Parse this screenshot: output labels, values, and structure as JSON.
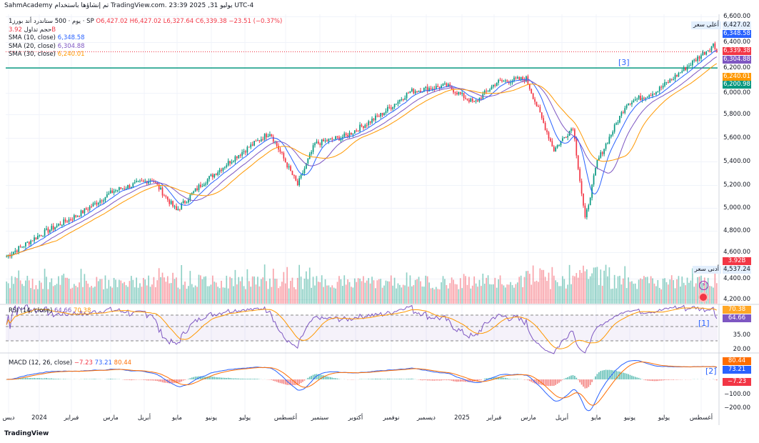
{
  "header": {
    "text": "SahmAcademy تم إنشاؤها باستخدام TradingView.com. 23:39 2025 ,31 يوليو UTC-4"
  },
  "legend": {
    "symbol": "1يوم · 500 ستاندرد أند بورز · SP",
    "open": "O6,427.02",
    "high": "H6,427.02",
    "low": "L6,327.64",
    "close": "C6,339.38",
    "change": "−23.51 (−0.37%)",
    "volume_label": "حجم تداول",
    "volume_value": "3.92B",
    "sma10_label": "SMA (10, close)",
    "sma10_value": "6,348.58",
    "sma20_label": "SMA (20, close)",
    "sma20_value": "6,304.88",
    "sma30_label": "SMA (30, close)",
    "sma30_value": "6,240.01"
  },
  "rsi": {
    "label": "RSI (14, close)",
    "value": "64.66",
    "ma": "70.38"
  },
  "macd": {
    "label": "MACD (12, 26, close)",
    "hist": "−7.23",
    "macd": "73.21",
    "signal": "80.44"
  },
  "price_tags": {
    "high_label": "أعلى سعر",
    "high": "6,427.02",
    "sma10": "6,348.58",
    "close": "6,339.38",
    "sma20": "6,304.88",
    "sma30": "6,240.01",
    "line": "6,200.98",
    "low_label": "أدنى سعر",
    "low": "4,537.24",
    "volume": "3.92B",
    "rsi_ma": "70.38",
    "rsi": "64.66",
    "macd_signal": "80.44",
    "macd": "73.21",
    "macd_hist": "−7.23"
  },
  "notes": [
    "[1]",
    "[2]",
    "[3]"
  ],
  "brand": "TradingView",
  "colors": {
    "up": "#089981",
    "down": "#f23645",
    "sma10": "#2962ff",
    "sma20": "#7e57c2",
    "sma30": "#ff9800",
    "line": "#089981"
  },
  "chart_data": {
    "type": "candlestick",
    "title": "S&P 500 · 1D",
    "price_axis_ticks": [
      "6,600.00",
      "6,400.00",
      "6,200.00",
      "6,000.00",
      "5,800.00",
      "5,600.00",
      "5,400.00",
      "5,200.00",
      "5,000.00",
      "4,800.00",
      "4,600.00",
      "4,400.00",
      "4,200.00"
    ],
    "rsi_ticks": [
      "35.00",
      "20.00"
    ],
    "macd_ticks": [
      "−100.00",
      "−200.00"
    ],
    "x_ticks": [
      "ديس",
      "2024",
      "فبراير",
      "مارس",
      "أبريل",
      "مايو",
      "يونيو",
      "يوليو",
      "أغسطس",
      "سبتمبر",
      "أكتوبر",
      "نوفمبر",
      "ديسمبر",
      "2025",
      "فبراير",
      "مارس",
      "أبريل",
      "مايو",
      "يونيو",
      "يوليو",
      "أغسطس"
    ],
    "ylim": [
      4200,
      6600
    ],
    "horizontal_line": 6200.98,
    "close_keypoints": [
      [
        0,
        4590
      ],
      [
        20,
        4780
      ],
      [
        42,
        4950
      ],
      [
        62,
        5150
      ],
      [
        84,
        5250
      ],
      [
        98,
        4980
      ],
      [
        112,
        5200
      ],
      [
        133,
        5450
      ],
      [
        152,
        5650
      ],
      [
        168,
        5200
      ],
      [
        178,
        5550
      ],
      [
        196,
        5620
      ],
      [
        216,
        5800
      ],
      [
        233,
        6000
      ],
      [
        254,
        6050
      ],
      [
        270,
        5900
      ],
      [
        283,
        6080
      ],
      [
        300,
        6110
      ],
      [
        316,
        5500
      ],
      [
        327,
        5700
      ],
      [
        334,
        4900
      ],
      [
        341,
        5400
      ],
      [
        358,
        5900
      ],
      [
        375,
        6000
      ],
      [
        392,
        6200
      ],
      [
        408,
        6400
      ],
      [
        410,
        6339.38
      ]
    ]
  }
}
